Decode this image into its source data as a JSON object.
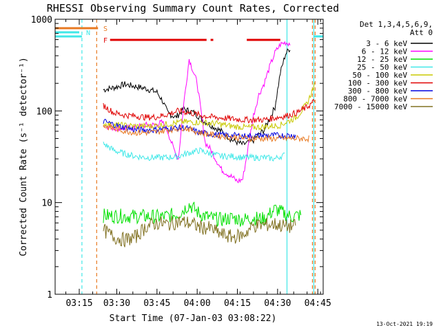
{
  "chart_data": {
    "type": "line",
    "title": "RHESSI Observing Summary Count Rates, Corrected",
    "xlabel": "Start Time (07-Jan-03 03:08:22)",
    "ylabel": "Corrected Count Rate (s⁻¹ detector⁻¹)",
    "yscale": "log",
    "ylim": [
      1,
      1000
    ],
    "xlim_minutes": [
      0,
      100
    ],
    "x_ticks": [
      {
        "t": 9,
        "label": "03:15"
      },
      {
        "t": 23,
        "label": "03:30"
      },
      {
        "t": 38,
        "label": "03:45"
      },
      {
        "t": 53,
        "label": "04:00"
      },
      {
        "t": 68,
        "label": "04:15"
      },
      {
        "t": 83,
        "label": "04:30"
      },
      {
        "t": 98,
        "label": "04:45"
      }
    ],
    "y_ticks": [
      {
        "v": 1,
        "label": "1"
      },
      {
        "v": 10,
        "label": "10"
      },
      {
        "v": 100,
        "label": "100"
      },
      {
        "v": 1000,
        "label": "1000"
      }
    ],
    "legend": {
      "header": [
        "Det 1,3,4,5,6,9,",
        "Att 0"
      ],
      "placement": "right"
    },
    "date_stamp": "13-Oct-2021 19:19",
    "status_bars": [
      {
        "label": "S",
        "color": "#e87820",
        "segments": [
          [
            0,
            16
          ]
        ]
      },
      {
        "label": "N",
        "color": "#40e8e8",
        "segments": [
          [
            0,
            9
          ]
        ],
        "label_after": true
      },
      {
        "label": "F",
        "color": "#e00000",
        "segments": [
          [
            20.5,
            56.5
          ],
          [
            58,
            59
          ],
          [
            71.5,
            84
          ]
        ]
      }
    ],
    "vlines": [
      {
        "t": 10,
        "color": "#40e8e8",
        "style": "dashed"
      },
      {
        "t": 15.5,
        "color": "#e87820",
        "style": "dashed"
      },
      {
        "t": 86.5,
        "color": "#40e8e8",
        "style": "solid"
      },
      {
        "t": 96.5,
        "color": "#40e8e8",
        "style": "solid"
      },
      {
        "t": 97,
        "color": "#e87820",
        "style": "dashed"
      },
      {
        "t": 96,
        "color": "#e87820",
        "style": "dashed"
      }
    ],
    "post_gap_segments": [
      {
        "color": "#40e8e8",
        "value": 650,
        "from": 0,
        "to": 10
      },
      {
        "color": "#40e8e8",
        "value": 650,
        "from": 96.5,
        "to": 100
      }
    ],
    "series": [
      {
        "name": "3 - 6 keV",
        "color": "#000000",
        "t": [
          18,
          22,
          26,
          30,
          34,
          38,
          40,
          42,
          45,
          48,
          52,
          55,
          58,
          62,
          66,
          70,
          72,
          74,
          76,
          78,
          82,
          84,
          86,
          88
        ],
        "v": [
          170,
          180,
          195,
          185,
          175,
          160,
          130,
          95,
          85,
          105,
          95,
          80,
          70,
          60,
          48,
          43,
          45,
          48,
          55,
          62,
          110,
          260,
          420,
          500
        ]
      },
      {
        "name": "6 - 12 keV",
        "color": "#ff00ff",
        "t": [
          18,
          22,
          26,
          30,
          34,
          37,
          40,
          42,
          44,
          46,
          48,
          50,
          53,
          56,
          58,
          62,
          66,
          68,
          70,
          72,
          74,
          76,
          78,
          80,
          82,
          84,
          86,
          88
        ],
        "v": [
          70,
          65,
          65,
          66,
          70,
          70,
          75,
          60,
          40,
          30,
          120,
          370,
          200,
          45,
          38,
          23,
          19,
          17,
          18,
          40,
          90,
          150,
          200,
          300,
          430,
          530,
          560,
          540
        ]
      },
      {
        "name": "12 - 25 keV",
        "color": "#00e000",
        "t": [
          18,
          30,
          40,
          46,
          50,
          54,
          58,
          62,
          66,
          70,
          74,
          78,
          82,
          86,
          88,
          90,
          92
        ],
        "v": [
          7.2,
          7.1,
          7.0,
          7.5,
          9.5,
          7.5,
          6.8,
          6.5,
          6.8,
          6.5,
          6.8,
          6.6,
          8.5,
          7.5,
          7.0,
          7.2,
          7.3
        ]
      },
      {
        "name": "25 - 50 keV",
        "color": "#40e8e8",
        "t": [
          18,
          22,
          26,
          30,
          34,
          38,
          42,
          46,
          50,
          54,
          58,
          62,
          66,
          70,
          74,
          78,
          82,
          84,
          86
        ],
        "v": [
          44,
          37,
          34,
          32,
          31,
          31,
          31,
          32,
          35,
          37,
          34,
          32,
          32,
          31,
          31,
          31,
          30,
          32,
          33
        ]
      },
      {
        "name": "50 - 100 keV",
        "color": "#c8c800",
        "t": [
          18,
          24,
          30,
          36,
          42,
          48,
          54,
          60,
          66,
          72,
          78,
          84,
          90,
          94,
          97
        ],
        "v": [
          72,
          70,
          68,
          68,
          72,
          76,
          75,
          73,
          68,
          66,
          67,
          70,
          85,
          120,
          200
        ]
      },
      {
        "name": "100 - 300 keV",
        "color": "#e00000",
        "t": [
          18,
          22,
          26,
          30,
          34,
          38,
          42,
          46,
          50,
          54,
          58,
          62,
          66,
          70,
          74,
          78,
          82,
          86,
          90,
          94,
          97
        ],
        "v": [
          115,
          95,
          90,
          88,
          85,
          86,
          92,
          100,
          96,
          90,
          86,
          84,
          82,
          80,
          80,
          80,
          84,
          88,
          95,
          110,
          130
        ]
      },
      {
        "name": "300 - 800 keV",
        "color": "#0000e0",
        "t": [
          18,
          24,
          30,
          36,
          42,
          48,
          54,
          60,
          66,
          72,
          78,
          82,
          86,
          90
        ],
        "v": [
          77,
          68,
          62,
          62,
          64,
          66,
          58,
          55,
          54,
          53,
          54,
          54,
          54,
          54
        ]
      },
      {
        "name": "800 - 7000 keV",
        "color": "#e87820",
        "t": [
          18,
          24,
          30,
          36,
          42,
          48,
          54,
          60,
          66,
          72,
          78,
          84,
          90,
          95
        ],
        "v": [
          68,
          62,
          58,
          58,
          62,
          66,
          58,
          54,
          52,
          50,
          50,
          50,
          50,
          50
        ]
      },
      {
        "name": "7000 - 15000 keV",
        "color": "#807020",
        "t": [
          18,
          22,
          26,
          30,
          34,
          38,
          42,
          46,
          50,
          54,
          58,
          62,
          66,
          70,
          74,
          78,
          82,
          86,
          90
        ],
        "v": [
          5.0,
          4.2,
          3.9,
          4.2,
          5.5,
          6.0,
          5.8,
          6.2,
          6.0,
          5.4,
          5.2,
          4.5,
          4.2,
          4.4,
          5.6,
          5.7,
          5.8,
          5.5,
          5.5
        ]
      }
    ]
  }
}
